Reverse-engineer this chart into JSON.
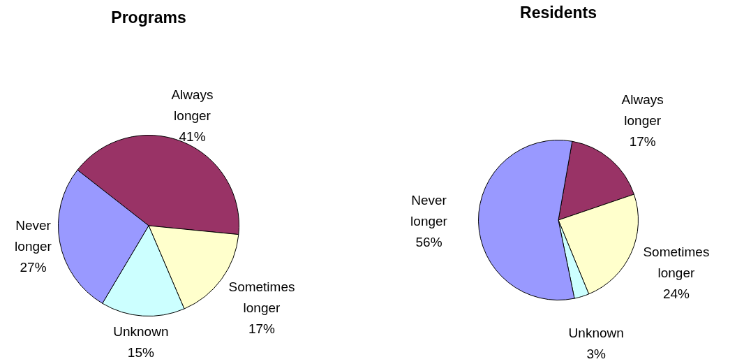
{
  "chart_data": [
    {
      "type": "pie",
      "title": "Programs",
      "categories": [
        "Always longer",
        "Sometimes longer",
        "Unknown",
        "Never longer"
      ],
      "values": [
        41,
        17,
        15,
        27
      ],
      "colors": [
        "#993366",
        "#ffffcc",
        "#ccffff",
        "#9999ff"
      ],
      "value_labels": [
        "41%",
        "17%",
        "15%",
        "27%"
      ],
      "legend": false
    },
    {
      "type": "pie",
      "title": "Residents",
      "categories": [
        "Always longer",
        "Sometimes longer",
        "Unknown",
        "Never longer"
      ],
      "values": [
        17,
        24,
        3,
        56
      ],
      "colors": [
        "#993366",
        "#ffffcc",
        "#ccffff",
        "#9999ff"
      ],
      "value_labels": [
        "17%",
        "24%",
        "3%",
        "56%"
      ],
      "legend": false
    }
  ]
}
